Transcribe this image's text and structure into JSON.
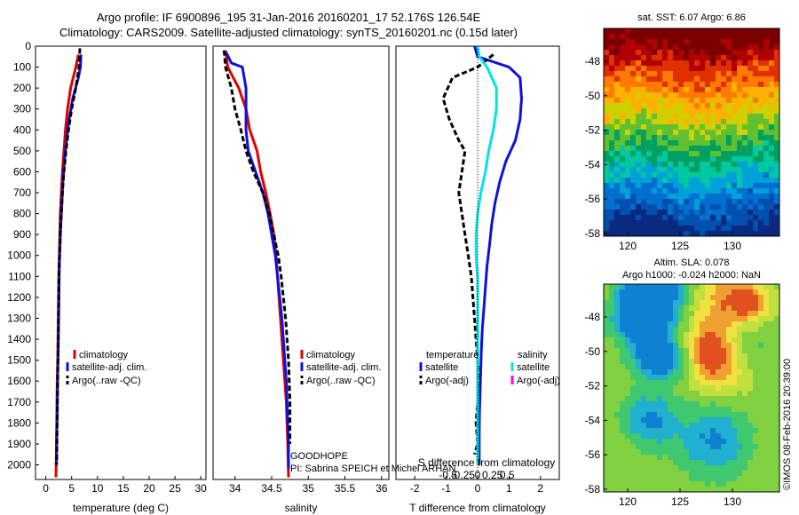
{
  "header": {
    "title_line1": "Argo profile: IF 6900896_195 31-Jan-2016 20160201_17 52.176S 126.54E",
    "title_line2": "Climatology: CARS2009. Satellite-adjusted climatology: synTS_20160201.nc (0.15d later)"
  },
  "colors": {
    "climatology": "#e00000",
    "satellite": "#1010dd",
    "argo": "#000000",
    "salinity_satellite": "#00e5e5",
    "salinity_argo": "#ff00ff"
  },
  "chart_data": [
    {
      "type": "line",
      "panel": "temperature",
      "xlabel": "temperature (deg C)",
      "ylabel": "",
      "xlim": [
        -2,
        31
      ],
      "ylim": [
        2070,
        0
      ],
      "xticks": [
        0,
        5,
        10,
        15,
        20,
        25,
        30
      ],
      "yticks": [
        0,
        100,
        200,
        300,
        400,
        500,
        600,
        700,
        800,
        900,
        1000,
        1100,
        1200,
        1300,
        1400,
        1500,
        1600,
        1700,
        1800,
        1900,
        2000
      ],
      "legend": [
        "climatology",
        "satellite-adj. clim.",
        "Argo(..raw -QC)"
      ],
      "legend_position": "lower-right",
      "series": [
        {
          "name": "climatology",
          "x": [
            6.3,
            5.8,
            4.8,
            4.2,
            3.8,
            3.5,
            3.2,
            3.0,
            2.8,
            2.7,
            2.6,
            2.5,
            2.45,
            2.4,
            2.35,
            2.3,
            2.2,
            2.15,
            2.1,
            2.05,
            2.0,
            1.95
          ],
          "y": [
            40,
            100,
            200,
            300,
            400,
            500,
            600,
            700,
            800,
            900,
            1000,
            1100,
            1200,
            1300,
            1400,
            1500,
            1600,
            1700,
            1800,
            1900,
            2000,
            2060
          ]
        },
        {
          "name": "satellite-adj. clim.",
          "x": [
            6.8,
            6.7,
            6.3,
            5.2,
            4.5,
            4.0,
            3.6,
            3.3,
            3.1,
            2.9,
            2.75,
            2.6,
            2.55,
            2.5,
            2.45,
            2.4,
            2.3,
            2.25,
            2.2,
            2.1,
            2.05,
            2.0
          ],
          "y": [
            40,
            100,
            150,
            250,
            350,
            450,
            550,
            650,
            750,
            850,
            950,
            1050,
            1150,
            1250,
            1350,
            1450,
            1550,
            1650,
            1750,
            1850,
            1950,
            2000
          ]
        },
        {
          "name": "Argo(..raw -QC)",
          "x": [
            6.6,
            6.4,
            5.8,
            5.0,
            4.4,
            3.9,
            3.5,
            3.2,
            3.0,
            2.8,
            2.65,
            2.55,
            2.5,
            2.45,
            2.4,
            2.35,
            2.3,
            2.25,
            2.2,
            2.15,
            2.1
          ],
          "y": [
            10,
            100,
            200,
            300,
            400,
            500,
            600,
            700,
            800,
            900,
            1000,
            1100,
            1200,
            1300,
            1400,
            1500,
            1600,
            1700,
            1800,
            1900,
            2000
          ]
        }
      ]
    },
    {
      "type": "line",
      "panel": "salinity",
      "xlabel": "salinity",
      "xlim": [
        33.7,
        36.1
      ],
      "ylim": [
        2070,
        0
      ],
      "xticks": [
        34,
        34.5,
        35,
        35.5,
        36
      ],
      "legend": [
        "climatology",
        "satellite-adj. clim.",
        "Argo(..raw -QC)"
      ],
      "legend_position": "lower-right",
      "annotation": [
        "GOODHOPE",
        "PI: Sabrina SPEICH et Michel ARHAN"
      ],
      "series": [
        {
          "name": "climatology",
          "x": [
            33.87,
            33.9,
            34.05,
            34.15,
            34.2,
            34.3,
            34.35,
            34.42,
            34.48,
            34.53,
            34.56,
            34.58,
            34.6,
            34.62,
            34.64,
            34.66,
            34.68,
            34.7,
            34.71,
            34.72,
            34.73
          ],
          "y": [
            20,
            100,
            200,
            300,
            400,
            500,
            600,
            700,
            800,
            900,
            1000,
            1100,
            1200,
            1300,
            1400,
            1500,
            1600,
            1700,
            1800,
            1900,
            2060
          ]
        },
        {
          "name": "satellite-adj. clim.",
          "x": [
            33.88,
            33.95,
            34.1,
            34.15,
            34.15,
            34.18,
            34.28,
            34.38,
            34.45,
            34.5,
            34.55,
            34.58,
            34.61,
            34.64,
            34.66,
            34.68,
            34.7,
            34.71,
            34.72,
            34.73,
            34.73
          ],
          "y": [
            30,
            80,
            100,
            200,
            400,
            500,
            600,
            700,
            800,
            900,
            1000,
            1100,
            1200,
            1300,
            1400,
            1500,
            1600,
            1700,
            1800,
            1900,
            2020
          ]
        },
        {
          "name": "Argo(..raw -QC)",
          "x": [
            33.85,
            33.87,
            33.95,
            34.0,
            34.08,
            34.15,
            34.25,
            34.38,
            34.47,
            34.53,
            34.59,
            34.63,
            34.66,
            34.69,
            34.71,
            34.73,
            34.74,
            34.75,
            34.75,
            34.75
          ],
          "y": [
            20,
            100,
            200,
            300,
            400,
            500,
            600,
            700,
            800,
            900,
            1000,
            1100,
            1200,
            1300,
            1400,
            1500,
            1600,
            1700,
            1800,
            1900
          ]
        }
      ]
    },
    {
      "type": "line",
      "panel": "difference",
      "xlabel": "T difference from climatology",
      "xlabel_secondary": "S difference from climatology",
      "xlim": [
        -2.6,
        2.6
      ],
      "ylim": [
        2070,
        0
      ],
      "xticks": [
        -2,
        -1,
        0,
        1,
        2
      ],
      "xticks_secondary": [
        "-0.5",
        "-0.25",
        "0",
        "0.25",
        "0.5"
      ],
      "legend_titles": [
        "temperature",
        "salinity"
      ],
      "legend": [
        "satellite",
        "Argo(-adj)",
        "satellite",
        "Argo(-adj)"
      ],
      "series": [
        {
          "name": "temperature satellite",
          "x": [
            -0.1,
            0.0,
            0.4,
            1.0,
            1.35,
            1.4,
            1.35,
            1.2,
            0.9,
            0.7,
            0.55,
            0.45,
            0.38,
            0.3,
            0.25,
            0.2,
            0.15,
            0.12,
            0.1,
            0.08,
            0.06,
            0.05,
            0.05
          ],
          "y": [
            0,
            50,
            70,
            100,
            150,
            250,
            350,
            450,
            550,
            650,
            750,
            850,
            950,
            1050,
            1150,
            1250,
            1350,
            1450,
            1550,
            1650,
            1750,
            1850,
            2000
          ]
        },
        {
          "name": "temperature Argo(-adj)",
          "x": [
            0.5,
            0.0,
            -0.8,
            -1.1,
            -0.9,
            -0.6,
            -0.4,
            -0.5,
            -0.6,
            -0.5,
            -0.4,
            -0.3,
            -0.2,
            -0.15,
            -0.1,
            -0.05,
            0.0,
            0.05,
            0.0,
            -0.05,
            0.0,
            -0.1
          ],
          "y": [
            40,
            100,
            150,
            250,
            350,
            450,
            500,
            600,
            700,
            800,
            900,
            1000,
            1100,
            1200,
            1300,
            1400,
            1500,
            1600,
            1700,
            1800,
            1900,
            1950
          ]
        },
        {
          "name": "salinity satellite",
          "x": [
            0.0,
            0.05,
            0.3,
            0.6,
            0.6,
            0.5,
            0.35,
            0.25,
            0.1,
            0.0,
            -0.05,
            -0.05,
            0.0,
            0.0,
            0.0,
            0.0,
            0.0,
            0.0,
            0.0,
            0.0
          ],
          "y": [
            0,
            50,
            100,
            200,
            300,
            400,
            500,
            600,
            700,
            800,
            900,
            1000,
            1100,
            1200,
            1300,
            1500,
            1600,
            1700,
            1800,
            2000
          ]
        }
      ]
    },
    {
      "type": "heatmap",
      "panel": "sst-map",
      "title": "sat. SST: 6.07 Argo: 6.86",
      "xticks": [
        120,
        125,
        130
      ],
      "yticks": [
        -48,
        -50,
        -52,
        -54,
        -56,
        -58
      ]
    },
    {
      "type": "heatmap",
      "panel": "sla-map",
      "title_line1": "Altim. SLA: 0.078",
      "title_line2": "Argo h1000: -0.024 h2000: NaN",
      "xticks": [
        120,
        125,
        130
      ],
      "yticks": [
        -48,
        -50,
        -52,
        -54,
        -56,
        -58
      ],
      "side_text": "©IMOS 08-Feb-2016 20:39:00"
    }
  ]
}
